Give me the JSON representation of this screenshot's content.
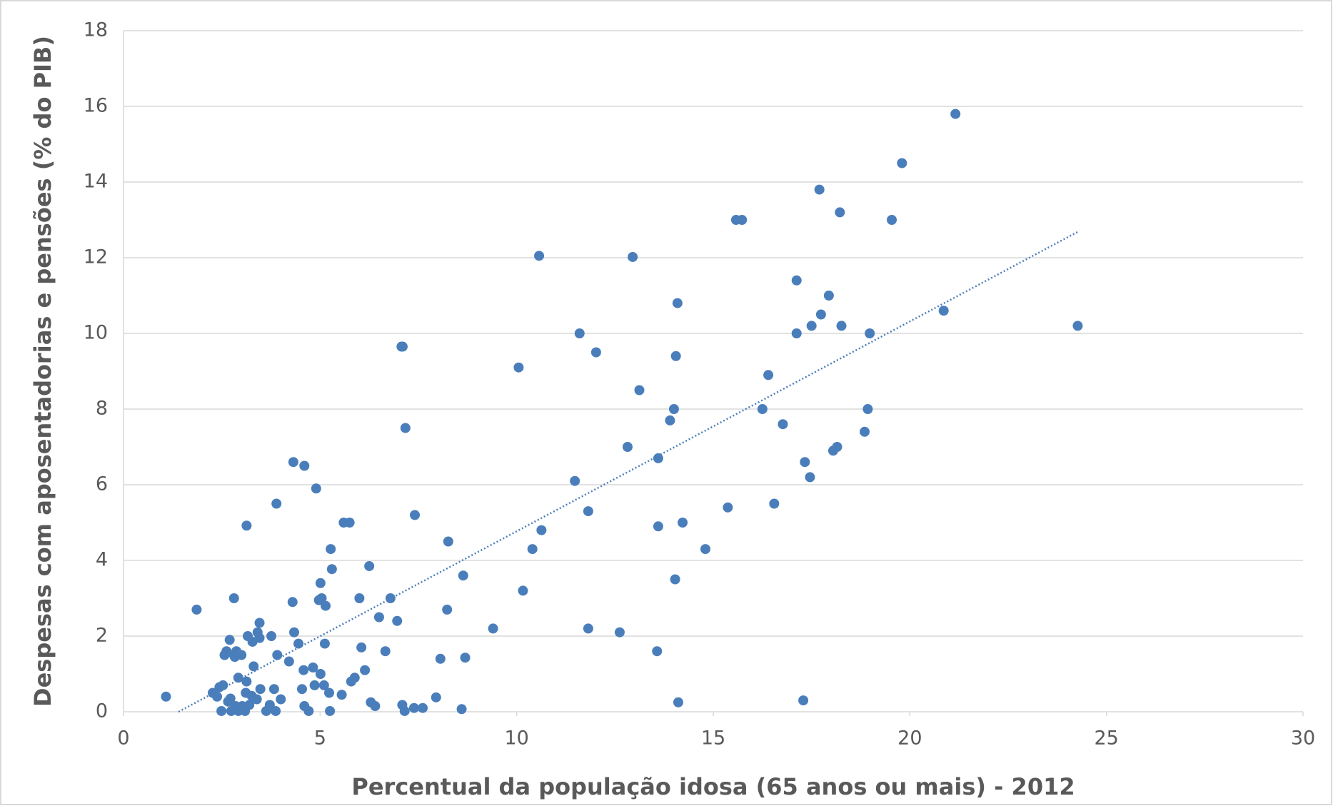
{
  "chart_data": {
    "type": "scatter",
    "x_label": "Percentual da população idosa (65 anos ou mais) - 2012",
    "y_label": "Despesas com aposentadorias e pensões (% do PIB)",
    "color": "#4a7ebb",
    "grid": true,
    "xlim": [
      0,
      30
    ],
    "xticks": [
      0,
      5,
      10,
      15,
      20,
      25,
      30
    ],
    "ylim": [
      0,
      18
    ],
    "yticks": [
      0,
      2,
      4,
      6,
      8,
      10,
      12,
      14,
      16,
      18
    ],
    "x": [
      1.08,
      1.86,
      2.81,
      3.13,
      3.89,
      4.32,
      4.6,
      4.9,
      5.6,
      5.75,
      7.07,
      7.1,
      7.17,
      7.41,
      5.27,
      5.3,
      6.25,
      5.01,
      4.97,
      5.04,
      5.14,
      4.3,
      6.0,
      6.79,
      6.5,
      6.96,
      8.26,
      8.64,
      8.23,
      9.4,
      10.16,
      10.05,
      10.57,
      10.63,
      10.4,
      11.48,
      11.6,
      12.02,
      11.82,
      11.82,
      12.62,
      12.82,
      12.95,
      13.12,
      13.6,
      13.6,
      13.57,
      13.9,
      14.0,
      14.05,
      14.09,
      14.03,
      14.11,
      14.22,
      14.8,
      15.37,
      15.58,
      15.73,
      16.25,
      16.4,
      16.55,
      16.77,
      17.12,
      17.12,
      17.29,
      17.33,
      17.46,
      17.5,
      17.7,
      17.74,
      17.94,
      18.05,
      18.15,
      18.22,
      18.26,
      18.85,
      18.93,
      18.98,
      19.54,
      19.8,
      20.86,
      21.16,
      24.27,
      2.27,
      2.38,
      2.44,
      2.53,
      2.49,
      2.57,
      2.62,
      2.7,
      2.66,
      2.72,
      2.74,
      2.81,
      2.83,
      2.87,
      2.92,
      3.0,
      2.85,
      2.92,
      3.02,
      3.09,
      3.11,
      3.13,
      3.16,
      3.2,
      3.26,
      3.28,
      3.31,
      3.39,
      3.41,
      3.46,
      3.46,
      3.48,
      3.63,
      3.72,
      3.76,
      3.83,
      3.87,
      3.91,
      4.0,
      4.21,
      4.34,
      4.45,
      4.54,
      4.58,
      4.6,
      4.71,
      4.82,
      4.86,
      5.01,
      5.1,
      5.12,
      5.23,
      5.25,
      5.55,
      5.79,
      5.88,
      6.05,
      6.14,
      6.29,
      6.4,
      6.66,
      7.09,
      7.15,
      7.39,
      7.61,
      7.95,
      8.06,
      8.6,
      8.69
    ],
    "values": [
      0.4,
      2.7,
      3.0,
      4.92,
      5.5,
      6.6,
      6.5,
      5.9,
      5.0,
      5.0,
      9.65,
      9.65,
      7.5,
      5.2,
      4.3,
      3.77,
      3.85,
      3.4,
      2.95,
      3.0,
      2.8,
      2.9,
      3.0,
      3.0,
      2.5,
      2.4,
      4.5,
      3.6,
      2.7,
      2.2,
      3.2,
      9.1,
      12.05,
      4.8,
      4.3,
      6.1,
      10.0,
      9.5,
      5.3,
      2.2,
      2.1,
      7.0,
      12.02,
      8.5,
      6.7,
      4.9,
      1.6,
      7.7,
      8.0,
      9.4,
      10.8,
      3.5,
      0.25,
      5.0,
      4.3,
      5.4,
      13.0,
      13.0,
      8.0,
      8.9,
      5.5,
      7.6,
      11.4,
      10.0,
      0.3,
      6.6,
      6.2,
      10.2,
      13.8,
      10.5,
      11.0,
      6.9,
      7.0,
      13.2,
      10.2,
      7.4,
      8.0,
      10.0,
      13.0,
      14.5,
      10.6,
      15.8,
      10.2,
      0.5,
      0.4,
      0.65,
      0.7,
      0.02,
      1.5,
      1.6,
      1.9,
      0.27,
      0.35,
      0.02,
      1.5,
      1.45,
      1.6,
      0.9,
      1.5,
      0.15,
      0.02,
      0.15,
      0.02,
      0.5,
      0.8,
      2.0,
      0.18,
      0.42,
      1.85,
      1.2,
      0.33,
      2.1,
      2.35,
      1.95,
      0.6,
      0.02,
      0.18,
      2.0,
      0.6,
      0.02,
      1.5,
      0.33,
      1.33,
      2.1,
      1.8,
      0.6,
      1.1,
      0.15,
      0.02,
      1.17,
      0.7,
      1.0,
      0.7,
      1.8,
      0.5,
      0.02,
      0.45,
      0.8,
      0.9,
      1.7,
      1.1,
      0.25,
      0.15,
      1.6,
      0.18,
      0.02,
      0.1,
      0.1,
      0.38,
      1.4,
      0.07,
      1.43
    ],
    "trendline": {
      "x": [
        1.4,
        24.3
      ],
      "values": [
        0,
        12.7
      ],
      "color": "#4a7ebb"
    }
  }
}
